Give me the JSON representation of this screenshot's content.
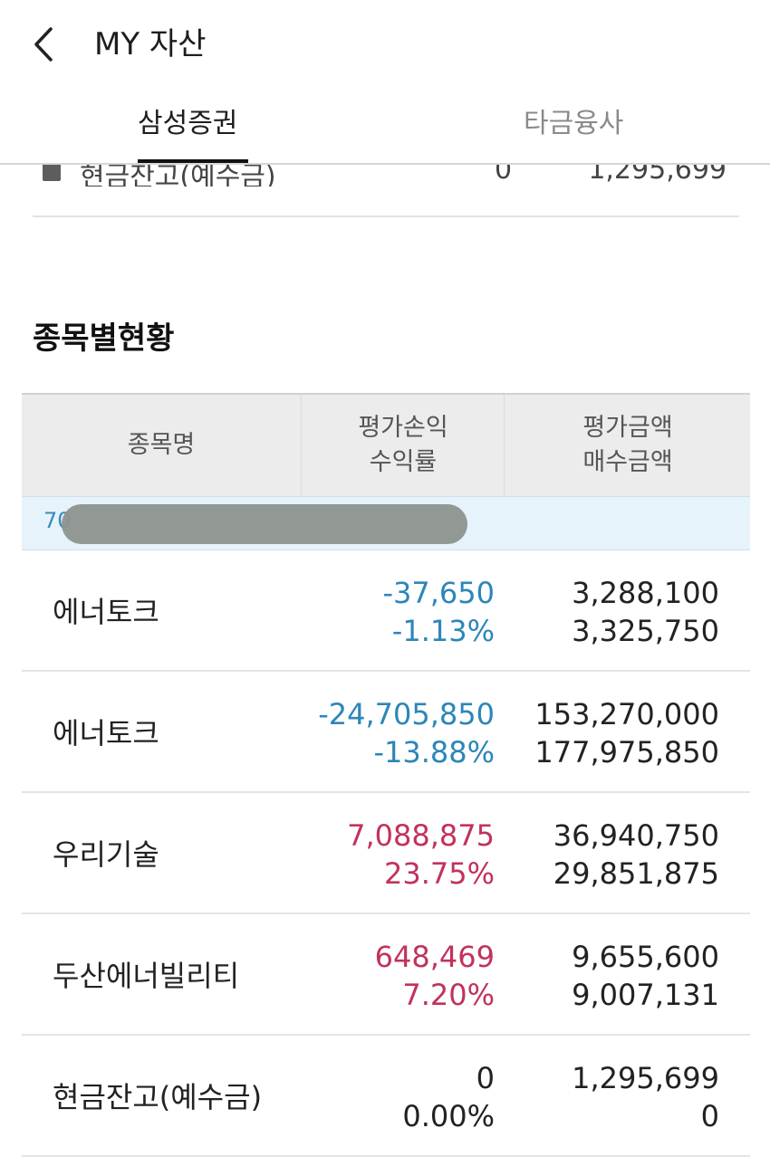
{
  "header": {
    "title": "MY 자산",
    "back_icon": "chevron-left-icon"
  },
  "tabs": [
    {
      "label": "삼성증권",
      "active": true
    },
    {
      "label": "타금융사",
      "active": false
    }
  ],
  "cut_row": {
    "label": "현금잔고(예수금)",
    "value1": "0",
    "value2": "1,295,699"
  },
  "section": {
    "title": "종목별현황"
  },
  "table": {
    "headers": {
      "name": "종목명",
      "pl_line1": "평가손익",
      "pl_line2": "수익률",
      "val_line1": "평가금액",
      "val_line2": "매수금액"
    },
    "account_prefix": "70",
    "rows": [
      {
        "name": "에너토크",
        "pl": "-37,650",
        "rate": "-1.13%",
        "eval": "3,288,100",
        "buy": "3,325,750",
        "tone": "neg"
      },
      {
        "name": "에너토크",
        "pl": "-24,705,850",
        "rate": "-13.88%",
        "eval": "153,270,000",
        "buy": "177,975,850",
        "tone": "neg"
      },
      {
        "name": "우리기술",
        "pl": "7,088,875",
        "rate": "23.75%",
        "eval": "36,940,750",
        "buy": "29,851,875",
        "tone": "pos"
      },
      {
        "name": "두산에너빌리티",
        "pl": "648,469",
        "rate": "7.20%",
        "eval": "9,655,600",
        "buy": "9,007,131",
        "tone": "pos"
      },
      {
        "name": "현금잔고(예수금)",
        "pl": "0",
        "rate": "0.00%",
        "eval": "1,295,699",
        "buy": "0",
        "tone": "neu"
      }
    ]
  },
  "colors": {
    "loss": "#2c86b8",
    "gain": "#c2325a",
    "header_bg": "#ececec",
    "account_bg": "#e6f3fb"
  }
}
